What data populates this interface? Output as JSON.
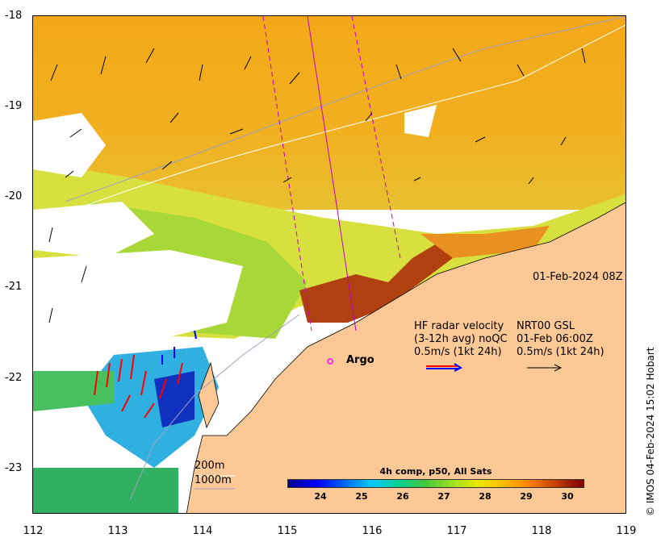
{
  "axes": {
    "y_ticks": [
      "-18",
      "-19",
      "-20",
      "-21",
      "-22",
      "-23"
    ],
    "x_ticks": [
      "112",
      "113",
      "114",
      "115",
      "116",
      "117",
      "118",
      "119"
    ]
  },
  "timestamp": "01-Feb-2024 08Z",
  "legend": {
    "hf_line1": "HF radar velocity",
    "hf_line2": "(3-12h avg) noQC",
    "hf_line3": "0.5m/s (1kt 24h)",
    "nrt_line1": "NRT00 GSL",
    "nrt_line2": "01-Feb 06:00Z",
    "nrt_line3": "0.5m/s (1kt 24h)"
  },
  "argo_label": "Argo",
  "depth_contours": {
    "shallow": "200m",
    "deep": "1000m"
  },
  "colorbar": {
    "title": "4h comp, p50, All Sats",
    "labels": [
      "24",
      "25",
      "26",
      "27",
      "28",
      "29",
      "30"
    ]
  },
  "credit": "© IMOS 04-Feb-2024 15:02 Hobart",
  "colors": {
    "land": "#fcc896",
    "sst_warm": "#f0a010",
    "sst_mid": "#c8e040",
    "sst_cool": "#2080ff",
    "argo": "#ff00ff",
    "hf_arrow_red": "#ff0000",
    "hf_arrow_blue": "#0000ff"
  }
}
